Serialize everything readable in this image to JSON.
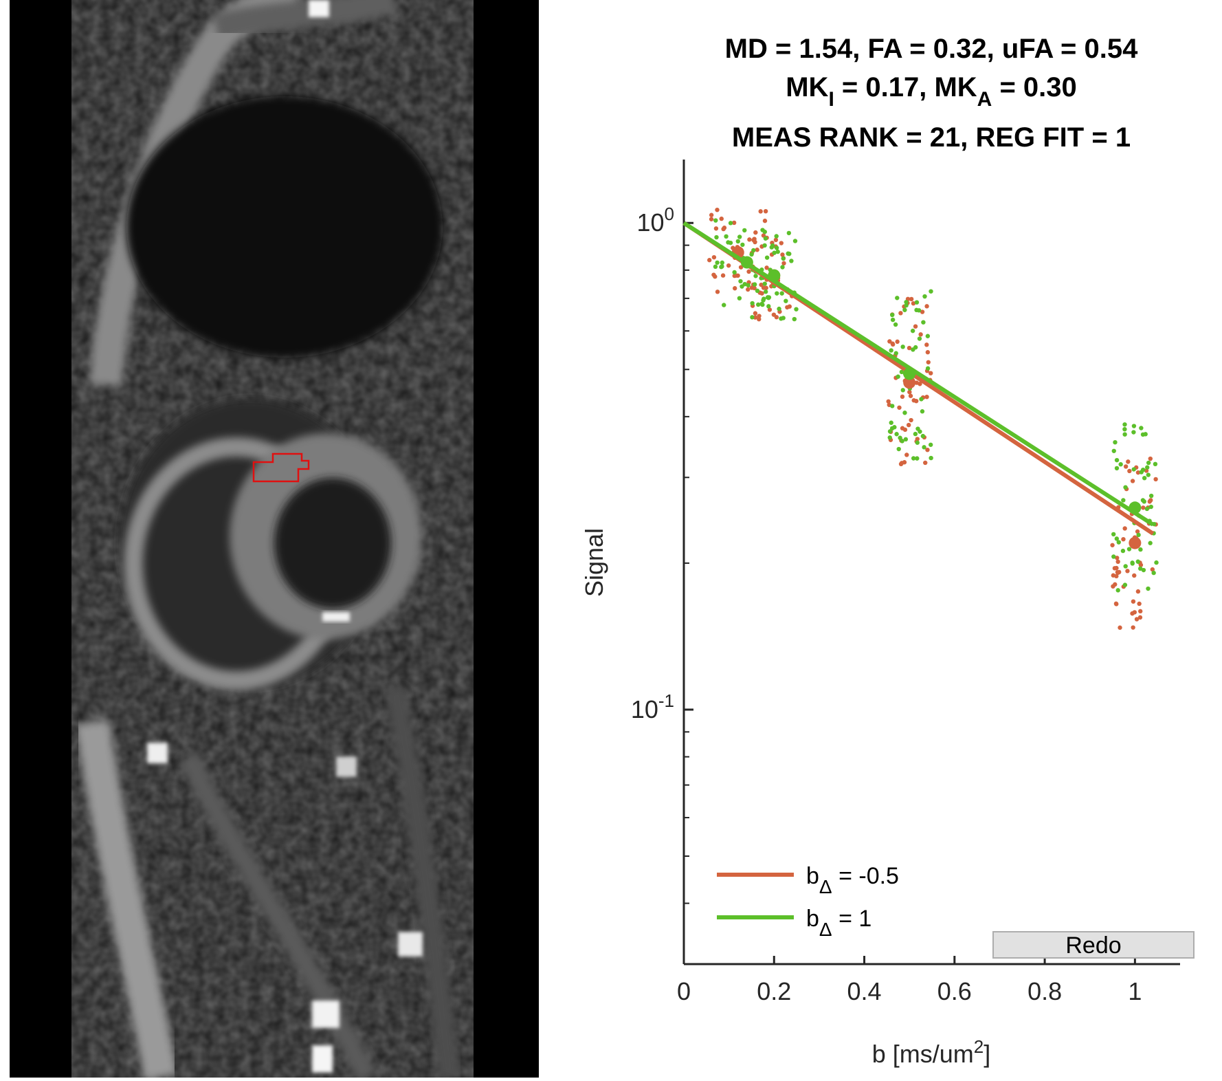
{
  "title": {
    "line1": "MD = 1.54, FA = 0.32, uFA = 0.54",
    "line2_parts": [
      "MK",
      "I",
      " = 0.17, MK",
      "A",
      " = 0.30"
    ],
    "line3": "MEAS RANK = 21, REG FIT = 1"
  },
  "axes": {
    "xlabel_main": "b [ms/um",
    "xlabel_sup": "2",
    "xlabel_end": "]",
    "ylabel": "Signal"
  },
  "legend": [
    {
      "prefix": "b",
      "sub": "Δ",
      "suffix": " = -0.5",
      "color": "#d4643f"
    },
    {
      "prefix": "b",
      "sub": "Δ",
      "suffix": " = 1",
      "color": "#5cbf2a"
    }
  ],
  "redo_button": {
    "label": "Redo"
  },
  "colors": {
    "series_red": "#d4643f",
    "series_green": "#5cbf2a",
    "roi": "#e01010"
  },
  "chart_data": {
    "type": "scatter",
    "x_ticks": [
      "0",
      "0.2",
      "0.4",
      "0.6",
      "0.8",
      "1"
    ],
    "x_tick_values": [
      0,
      0.2,
      0.4,
      0.6,
      0.8,
      1
    ],
    "y_ticks": [
      {
        "base": "10",
        "exp": "0",
        "value": 1.0
      },
      {
        "base": "10",
        "exp": "-1",
        "value": 0.1
      }
    ],
    "xlim": [
      0,
      1.1
    ],
    "ylim": [
      0.03,
      1.35
    ],
    "yscale": "log",
    "series": [
      {
        "name": "b_Δ = -0.5",
        "color": "#d4643f",
        "fit_line": {
          "x": [
            0,
            1.04
          ],
          "y": [
            1.0,
            0.23
          ]
        },
        "mean_points": {
          "x": [
            0.12,
            0.2,
            0.5,
            1.0
          ],
          "y": [
            0.87,
            0.78,
            0.47,
            0.22
          ]
        }
      },
      {
        "name": "b_Δ = 1",
        "color": "#5cbf2a",
        "fit_line": {
          "x": [
            0,
            1.04
          ],
          "y": [
            1.0,
            0.24
          ]
        },
        "mean_points": {
          "x": [
            0.14,
            0.2,
            0.5,
            1.0
          ],
          "y": [
            0.83,
            0.78,
            0.49,
            0.26
          ]
        }
      }
    ]
  }
}
